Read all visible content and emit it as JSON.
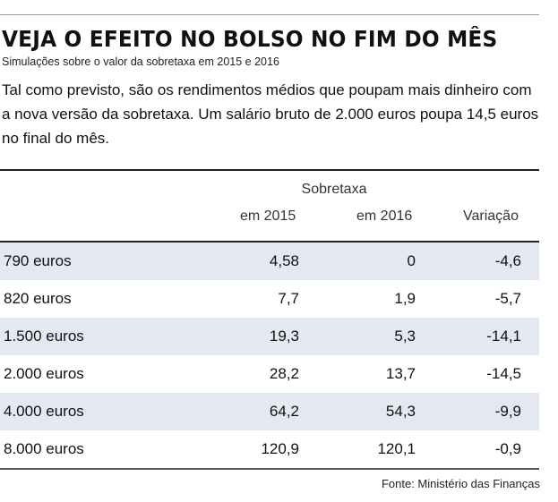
{
  "headline": "VEJA O EFEITO NO BOLSO NO FIM DO MÊS",
  "subtitle": "Simulações sobre o valor da sobretaxa em 2015 e 2016",
  "intro": "Tal como previsto, são os rendimentos médios que poupam mais dinheiro com a nova versão da sobretaxa. Um salário bruto de 2.000 euros poupa 14,5 euros no  final do mês.",
  "table": {
    "group_header": "Sobretaxa",
    "columns": [
      "em 2015",
      "em 2016",
      "Variação"
    ],
    "rows": [
      {
        "label": "790 euros",
        "y2015": "4,58",
        "y2016": "0",
        "var": "-4,6"
      },
      {
        "label": "820 euros",
        "y2015": "7,7",
        "y2016": "1,9",
        "var": "-5,7"
      },
      {
        "label": "1.500 euros",
        "y2015": "19,3",
        "y2016": "5,3",
        "var": "-14,1"
      },
      {
        "label": "2.000 euros",
        "y2015": "28,2",
        "y2016": "13,7",
        "var": "-14,5"
      },
      {
        "label": "4.000 euros",
        "y2015": "64,2",
        "y2016": "54,3",
        "var": "-9,9"
      },
      {
        "label": "8.000 euros",
        "y2015": "120,9",
        "y2016": "120,1",
        "var": "-0,9"
      }
    ]
  },
  "source": "Fonte: Ministério das Finanças",
  "colors": {
    "row_shade": "#e4e8f1",
    "rule": "#222222"
  }
}
